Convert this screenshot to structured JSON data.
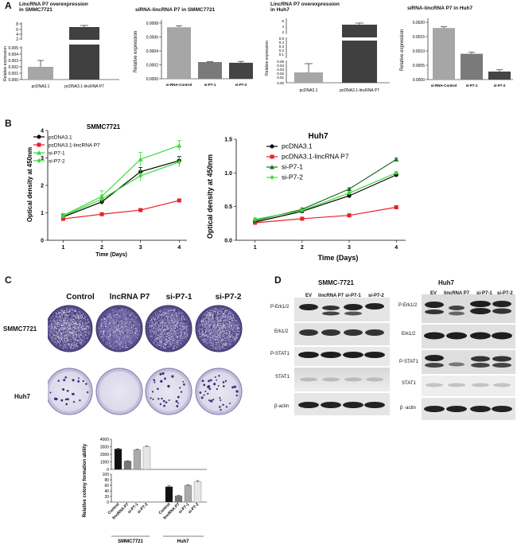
{
  "panel_a": {
    "letter": "A",
    "charts": [
      {
        "title_l1": "LincRNA P7 overexpression",
        "title_l2": "in SMMC7721",
        "ylabel": "Relative expression",
        "ticks": [
          "8",
          "6",
          "4",
          "2",
          "0.005",
          "0.004",
          "0.003",
          "0.002",
          "0.001",
          "0.000"
        ],
        "categories": [
          "pcDNA3.1",
          "pcDNA3.1-lincRNA P7"
        ]
      },
      {
        "title_l1": "siRNA-lincRNA P7 in SMMC7721",
        "title_l2": "",
        "ylabel": "Relative expression",
        "ticks": [
          "0.0008",
          "0.0006",
          "0.0004",
          "0.0002",
          "0.0000"
        ],
        "categories": [
          "si-RNA-Control",
          "si-P7-1",
          "si-P7-2"
        ]
      },
      {
        "title_l1": "LincRNA P7 overexpression",
        "title_l2": "in Huh7",
        "ylabel": "Relative expression",
        "ticks": [
          "6",
          "4",
          "2",
          "0.5",
          "0.4",
          "0.3",
          "0.2",
          "0.1",
          "0.05",
          "0.04",
          "0.03",
          "0.02",
          "0.01",
          "0.00"
        ],
        "categories": [
          "pcDNA3.1",
          "pcDNA3.1-lincRNA P7"
        ]
      },
      {
        "title_l1": "siRNA-lincRNA P7 in Huh7",
        "title_l2": "",
        "ylabel": "Relative expression",
        "ticks": [
          "0.0020",
          "0.0015",
          "0.0010",
          "0.0005",
          "0.0000"
        ],
        "categories": [
          "si-RNA-Control",
          "si-P7-1",
          "si-P7-2"
        ]
      }
    ]
  },
  "panel_b": {
    "letter": "B",
    "charts": [
      {
        "title": "SMMC7721",
        "ylabel": "Optical density at 450nm",
        "xlabel": "Time (Days)",
        "yticks": [
          "4",
          "3",
          "2",
          "1",
          "0"
        ],
        "xticks": [
          "1",
          "2",
          "3",
          "4"
        ],
        "legend": [
          "pcDNA3.1",
          "pcDNA3.1-lincRNA P7",
          "si-P7-1",
          "si-P7-2"
        ]
      },
      {
        "title": "Huh7",
        "ylabel": "Optical density at 450nm",
        "xlabel": "Time (Days)",
        "yticks": [
          "1.5",
          "1.0",
          "0.5",
          "0.0"
        ],
        "xticks": [
          "1",
          "2",
          "3",
          "4"
        ],
        "legend": [
          "pcDNA3.1",
          "pcDNA3.1-lincRNA P7",
          "si-P7-1",
          "si-P7-2"
        ]
      }
    ]
  },
  "panel_c": {
    "letter": "C",
    "columns": [
      "Control",
      "lncRNA P7",
      "si-P7-1",
      "si-P7-2"
    ],
    "rows": [
      "SMMC7721",
      "Huh7"
    ],
    "bar_ylabel": "Relative colony formation ability",
    "bar_ticks_top": [
      "4000",
      "3000",
      "2000",
      "1000",
      "0"
    ],
    "bar_ticks_bottom": [
      "100",
      "80",
      "60",
      "40",
      "20",
      "0"
    ],
    "bar_categories": [
      "Control",
      "lincRNA P7",
      "si-P7-1",
      "si-P7-2",
      "Control",
      "lincRNA P7",
      "si-P7-1",
      "si-P7-2"
    ],
    "groups": [
      "SMMC7721",
      "Huh7"
    ]
  },
  "panel_d": {
    "letter": "D",
    "left": {
      "title": "SMMC-7721",
      "columns": [
        "EV",
        "lincRNA P7",
        "si-P7-1",
        "si-P7-2"
      ],
      "rows": [
        "P-Erk1/2",
        "Erk1/2",
        "P-STAT1",
        "STAT1",
        "β-actin"
      ]
    },
    "right": {
      "title": "Huh7",
      "columns": [
        "EV",
        "lincRNA P7",
        "si-P7-1",
        "si-P7-2"
      ],
      "rows": [
        "P-Erk1/2",
        "Erk1/2",
        "P-STAT1",
        "STAT1",
        "β -actin"
      ]
    }
  },
  "chart_data": [
    {
      "type": "bar",
      "title": "LincRNA P7 overexpression in SMMC7721",
      "ylabel": "Relative expression",
      "categories": [
        "pcDNA3.1",
        "pcDNA3.1-lincRNA P7"
      ],
      "values": [
        0.002,
        5.3
      ],
      "errors": [
        0.0012,
        0.6
      ],
      "ylim": [
        0,
        8
      ],
      "colors": [
        "#a6a6a6",
        "#404040"
      ]
    },
    {
      "type": "bar",
      "title": "siRNA-lincRNA P7 in SMMC7721",
      "ylabel": "Relative expression",
      "categories": [
        "si-RNA-Control",
        "si-P7-1",
        "si-P7-2"
      ],
      "values": [
        0.00074,
        0.00024,
        0.00023
      ],
      "errors": [
        2e-05,
        5e-06,
        2e-05
      ],
      "ylim": [
        0,
        0.0008
      ],
      "colors": [
        "#a6a6a6",
        "#7a7a7a",
        "#444444"
      ]
    },
    {
      "type": "bar",
      "title": "LincRNA P7 overexpression in Huh7",
      "ylabel": "Relative expression",
      "categories": [
        "pcDNA3.1",
        "pcDNA3.1-lincRNA P7"
      ],
      "values": [
        0.02,
        5.2
      ],
      "errors": [
        0.014,
        0.3
      ],
      "ylim": [
        0,
        6
      ],
      "colors": [
        "#a6a6a6",
        "#404040"
      ]
    },
    {
      "type": "bar",
      "title": "siRNA-lincRNA P7 in Huh7",
      "ylabel": "Relative expression",
      "categories": [
        "si-RNA-Control",
        "si-P7-1",
        "si-P7-2"
      ],
      "values": [
        0.0018,
        0.0009,
        0.00028
      ],
      "errors": [
        4e-05,
        5e-05,
        6e-05
      ],
      "ylim": [
        0,
        0.002
      ],
      "colors": [
        "#a6a6a6",
        "#7a7a7a",
        "#444444"
      ]
    },
    {
      "type": "line",
      "title": "SMMC7721",
      "xlabel": "Time (Days)",
      "ylabel": "Optical density at 450nm",
      "x": [
        1,
        2,
        3,
        4
      ],
      "ylim": [
        0,
        4
      ],
      "series": [
        {
          "name": "pcDNA3.1",
          "values": [
            0.85,
            1.4,
            2.5,
            2.9
          ],
          "errors": [
            0.08,
            0.1,
            0.15,
            0.15
          ],
          "color": "#000000",
          "marker": "circle"
        },
        {
          "name": "pcDNA3.1-lincRNA P7",
          "values": [
            0.78,
            0.95,
            1.1,
            1.45
          ],
          "errors": [
            0.05,
            0.05,
            0.05,
            0.05
          ],
          "color": "#e8202a",
          "marker": "square"
        },
        {
          "name": "si-P7-1",
          "values": [
            0.9,
            1.6,
            2.95,
            3.45
          ],
          "errors": [
            0.08,
            0.2,
            0.25,
            0.18
          ],
          "color": "#3ad83a",
          "marker": "triangle"
        },
        {
          "name": "si-P7-2",
          "values": [
            0.88,
            1.5,
            2.35,
            2.85
          ],
          "errors": [
            0.08,
            0.15,
            0.2,
            0.18
          ],
          "color": "#3ad83a",
          "marker": "diamond"
        }
      ]
    },
    {
      "type": "line",
      "title": "Huh7",
      "xlabel": "Time (Days)",
      "ylabel": "Optical density at 450nm",
      "x": [
        1,
        2,
        3,
        4
      ],
      "ylim": [
        0,
        1.5
      ],
      "series": [
        {
          "name": "pcDNA3.1",
          "values": [
            0.27,
            0.43,
            0.66,
            0.97
          ],
          "errors": [
            0.02,
            0.02,
            0.02,
            0.02
          ],
          "color": "#000000",
          "marker": "circle"
        },
        {
          "name": "pcDNA3.1-lincRNA P7",
          "values": [
            0.26,
            0.32,
            0.37,
            0.49
          ],
          "errors": [
            0.01,
            0.01,
            0.01,
            0.01
          ],
          "color": "#e8202a",
          "marker": "square"
        },
        {
          "name": "si-P7-1",
          "values": [
            0.29,
            0.46,
            0.76,
            1.2
          ],
          "errors": [
            0.02,
            0.02,
            0.02,
            0.02
          ],
          "color": "#1e6b1e",
          "marker": "triangle"
        },
        {
          "name": "si-P7-2",
          "values": [
            0.31,
            0.44,
            0.7,
            1.0
          ],
          "errors": [
            0.02,
            0.02,
            0.02,
            0.02
          ],
          "color": "#3ad83a",
          "marker": "diamond"
        }
      ]
    },
    {
      "type": "bar",
      "ylabel": "Relative colony formation ability",
      "categories": [
        "Control",
        "lincRNA P7",
        "si-P7-1",
        "si-P7-2",
        "Control",
        "lincRNA P7",
        "si-P7-1",
        "si-P7-2"
      ],
      "groups": [
        "SMMC7721",
        "SMMC7721",
        "SMMC7721",
        "SMMC7721",
        "Huh7",
        "Huh7",
        "Huh7",
        "Huh7"
      ],
      "values": [
        2700,
        1100,
        2600,
        3000,
        55,
        22,
        60,
        73
      ],
      "errors": [
        100,
        50,
        80,
        80,
        3,
        2,
        2,
        4
      ],
      "colors": [
        "#111111",
        "#777777",
        "#aaaaaa",
        "#e6e6e6",
        "#111111",
        "#777777",
        "#aaaaaa",
        "#e6e6e6"
      ]
    }
  ]
}
